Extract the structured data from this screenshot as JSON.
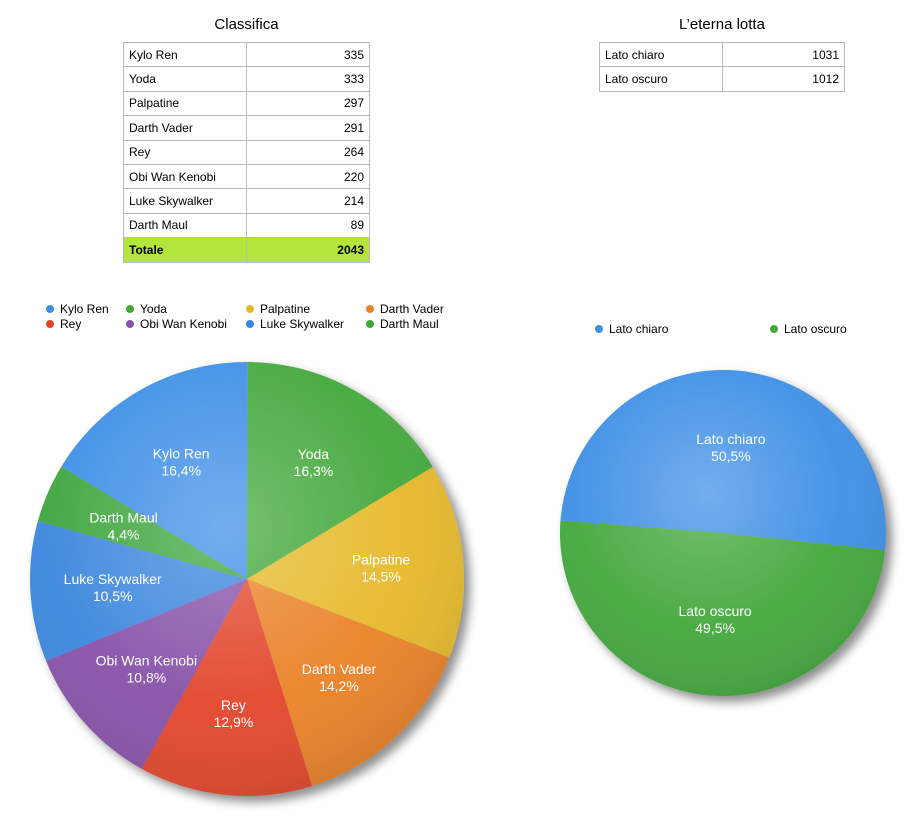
{
  "ranking": {
    "title": "Classifica",
    "rows": [
      {
        "name": "Kylo Ren",
        "value": "335"
      },
      {
        "name": "Yoda",
        "value": "333"
      },
      {
        "name": "Palpatine",
        "value": "297"
      },
      {
        "name": "Darth Vader",
        "value": "291"
      },
      {
        "name": "Rey",
        "value": "264"
      },
      {
        "name": "Obi Wan Kenobi",
        "value": "220"
      },
      {
        "name": "Luke Skywalker",
        "value": "214"
      },
      {
        "name": "Darth Maul",
        "value": "89"
      }
    ],
    "total_label": "Totale",
    "total_value": "2043"
  },
  "battle": {
    "title": "L’eterna lotta",
    "rows": [
      {
        "name": "Lato chiaro",
        "value": "1031"
      },
      {
        "name": "Lato oscuro",
        "value": "1012"
      }
    ]
  },
  "chart_data": [
    {
      "type": "pie",
      "categories": [
        "Kylo Ren",
        "Yoda",
        "Palpatine",
        "Darth Vader",
        "Rey",
        "Obi Wan Kenobi",
        "Luke Skywalker",
        "Darth Maul"
      ],
      "values": [
        335,
        333,
        297,
        291,
        264,
        220,
        214,
        89
      ],
      "percent_labels": [
        "16,4%",
        "16,3%",
        "14,5%",
        "14,2%",
        "12,9%",
        "10,8%",
        "10,5%",
        "4,4%"
      ],
      "colors": [
        "#3c8ee6",
        "#43a83a",
        "#e6b92b",
        "#ea8128",
        "#e2452a",
        "#8751a8",
        "#3b86dd",
        "#3ea63c"
      ],
      "legend_position": "top",
      "title": ""
    },
    {
      "type": "pie",
      "categories": [
        "Lato chiaro",
        "Lato oscuro"
      ],
      "values": [
        1031,
        1012
      ],
      "percent_labels": [
        "50,5%",
        "49,5%"
      ],
      "colors": [
        "#3c8ee6",
        "#43a83a"
      ],
      "legend_position": "top",
      "title": ""
    }
  ]
}
